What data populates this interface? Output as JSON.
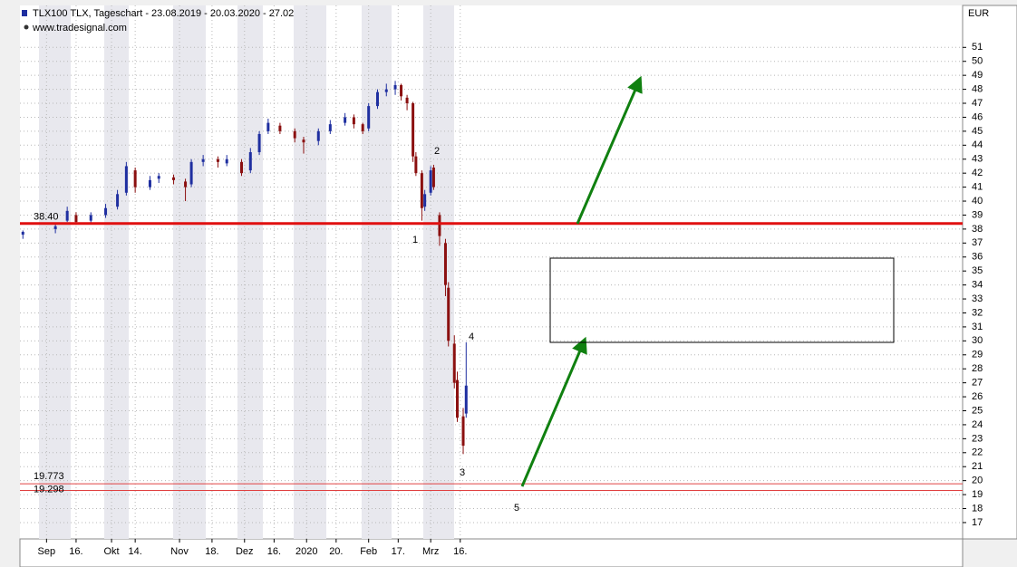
{
  "chart_data": {
    "type": "candlestick",
    "title": "TLX100  TLX, Tageschart - 23.08.2019 - 20.03.2020 - 27.02",
    "subtitle": "www.tradesignal.com",
    "y_axis_label": "EUR",
    "up_color": "#1f2fa0",
    "down_color": "#8b1010",
    "x": [
      0,
      11,
      15,
      18,
      23,
      28,
      32,
      35,
      38,
      43,
      46,
      51,
      55,
      57,
      61,
      66,
      69,
      74,
      77,
      80,
      83,
      87,
      92,
      95,
      100,
      104,
      109,
      112,
      115,
      117,
      120,
      123,
      126,
      128,
      130,
      132,
      133,
      135,
      136,
      138,
      139,
      141,
      143,
      144,
      146,
      147,
      149,
      150
    ],
    "open": [
      37.6,
      38.0,
      38.6,
      39.0,
      38.6,
      39.0,
      39.6,
      40.6,
      42.2,
      41.0,
      41.6,
      41.7,
      41.4,
      41.2,
      42.8,
      43.0,
      42.7,
      42.8,
      42.2,
      43.5,
      45.0,
      45.4,
      45.0,
      44.4,
      44.3,
      45.0,
      45.6,
      46.0,
      45.5,
      45.2,
      46.8,
      47.8,
      48.0,
      48.3,
      47.4,
      47.0,
      43.2,
      42.0,
      39.6,
      40.6,
      42.4,
      39.0,
      37.0,
      33.8,
      29.8,
      27.2,
      24.6,
      24.8
    ],
    "high": [
      37.9,
      38.4,
      39.6,
      39.2,
      39.2,
      39.8,
      40.8,
      42.8,
      42.4,
      41.8,
      42.0,
      41.9,
      41.6,
      43.0,
      43.3,
      43.2,
      43.3,
      43.0,
      43.8,
      45.0,
      45.9,
      45.6,
      45.2,
      44.6,
      45.2,
      45.8,
      46.3,
      46.2,
      45.6,
      47.0,
      48.0,
      48.4,
      48.6,
      48.4,
      47.6,
      47.1,
      43.5,
      42.2,
      40.8,
      42.5,
      42.6,
      39.2,
      37.3,
      34.2,
      30.4,
      27.8,
      25.2,
      29.9
    ],
    "low": [
      37.3,
      37.7,
      38.5,
      38.3,
      38.4,
      38.8,
      39.4,
      40.4,
      40.6,
      40.8,
      41.3,
      41.2,
      40.0,
      41.0,
      42.5,
      42.4,
      42.5,
      41.8,
      42.0,
      43.3,
      44.8,
      44.8,
      44.2,
      43.4,
      44.0,
      44.8,
      45.4,
      45.2,
      44.8,
      45.0,
      46.6,
      47.5,
      47.6,
      47.2,
      46.5,
      42.8,
      41.8,
      38.6,
      39.3,
      40.4,
      40.8,
      36.8,
      33.2,
      29.6,
      26.6,
      24.2,
      21.9,
      24.5
    ],
    "close": [
      37.8,
      38.2,
      39.3,
      38.5,
      39.0,
      39.5,
      40.5,
      42.5,
      41.0,
      41.5,
      41.8,
      41.5,
      41.0,
      42.8,
      43.0,
      42.8,
      43.0,
      42.0,
      43.5,
      44.8,
      45.6,
      45.0,
      44.5,
      44.2,
      45.0,
      45.5,
      46.0,
      45.5,
      45.0,
      46.8,
      47.8,
      48.0,
      48.3,
      47.5,
      47.0,
      43.2,
      42.0,
      39.5,
      40.5,
      42.2,
      41.0,
      37.5,
      34.0,
      30.0,
      27.0,
      24.5,
      22.5,
      26.8
    ],
    "xlim": [
      -1,
      318
    ],
    "xticks": [
      {
        "value": 8,
        "label": "Sep"
      },
      {
        "value": 18,
        "label": "16."
      },
      {
        "value": 30,
        "label": "Okt"
      },
      {
        "value": 38,
        "label": "14."
      },
      {
        "value": 53,
        "label": "Nov"
      },
      {
        "value": 64,
        "label": "18."
      },
      {
        "value": 75,
        "label": "Dez"
      },
      {
        "value": 85,
        "label": "16."
      },
      {
        "value": 96,
        "label": "2020"
      },
      {
        "value": 106,
        "label": "20."
      },
      {
        "value": 117,
        "label": "Feb"
      },
      {
        "value": 127,
        "label": "17."
      },
      {
        "value": 138,
        "label": "Mrz"
      },
      {
        "value": 148,
        "label": "16."
      }
    ],
    "ylim": [
      15.83,
      54.0
    ],
    "yticks": [
      17,
      18,
      19,
      20,
      21,
      22,
      23,
      24,
      25,
      26,
      27,
      28,
      29,
      30,
      31,
      32,
      33,
      34,
      35,
      36,
      37,
      38,
      39,
      40,
      41,
      42,
      43,
      44,
      45,
      46,
      47,
      48,
      49,
      50,
      51
    ],
    "grid": true,
    "levels": [
      {
        "value": 38.4,
        "label": "38.40"
      },
      {
        "value": 19.773,
        "label": "19.773"
      },
      {
        "value": 19.298,
        "label": "19.298"
      }
    ],
    "annotations": [
      "1",
      "2",
      "3",
      "4",
      "5"
    ]
  }
}
